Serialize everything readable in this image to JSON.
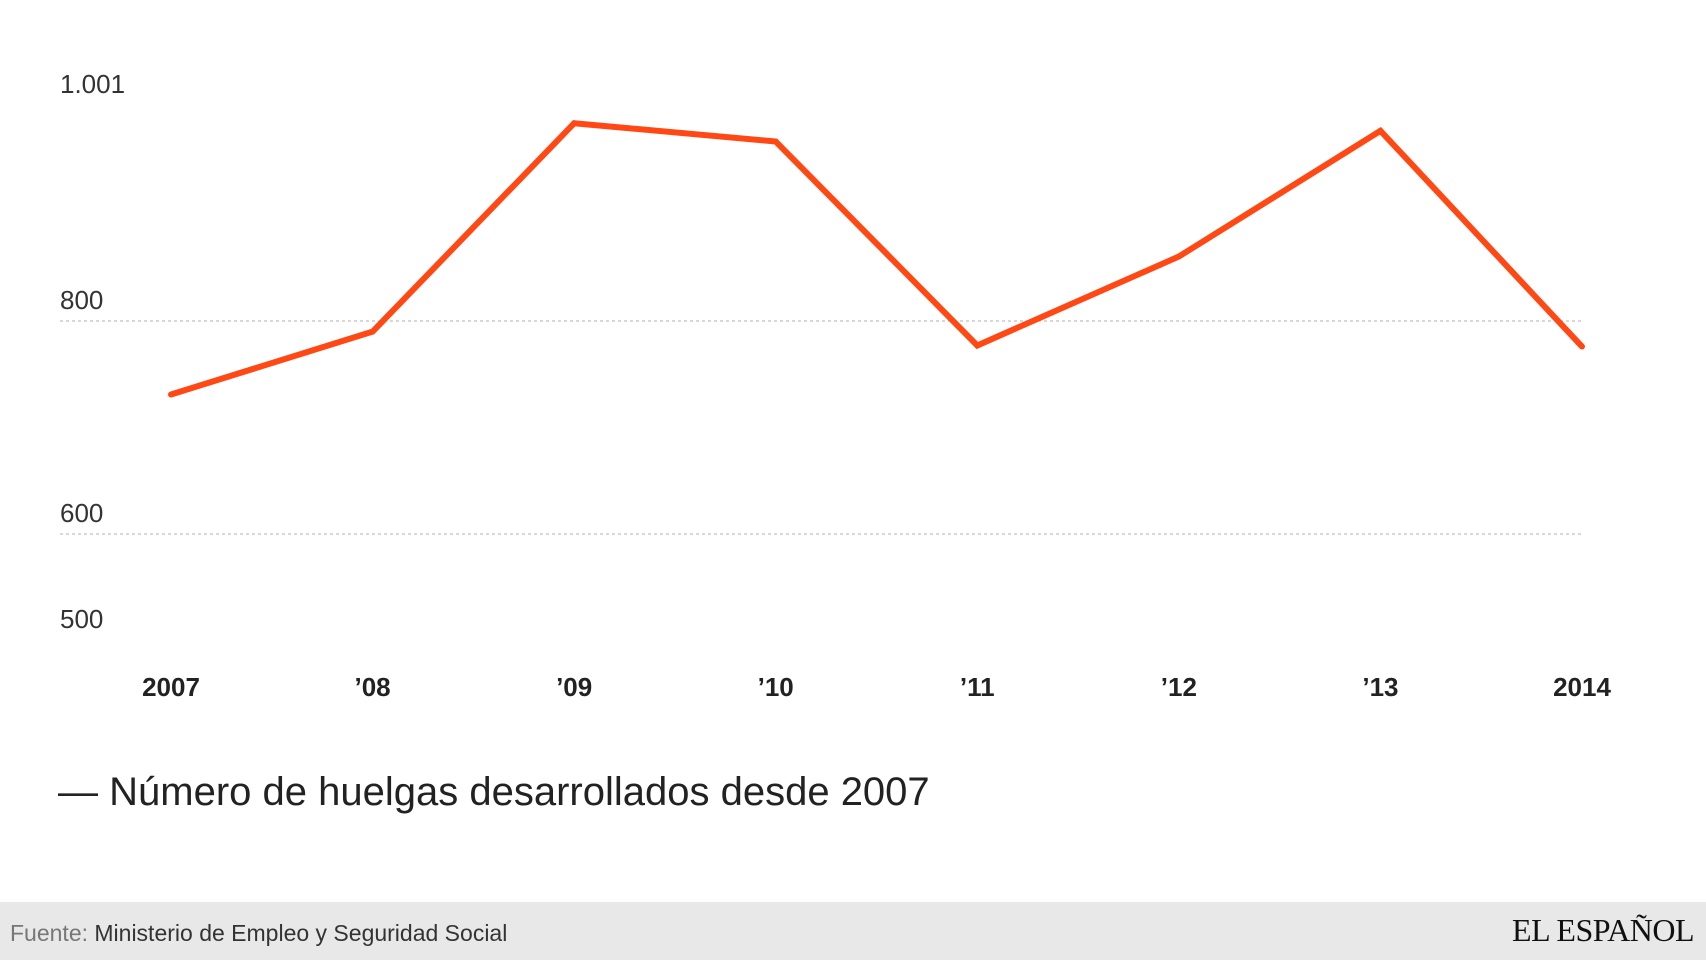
{
  "chart_data": {
    "type": "line",
    "categories": [
      "2007",
      "’08",
      "’09",
      "’10",
      "’11",
      "’12",
      "’13",
      "2014"
    ],
    "series": [
      {
        "name": "Número de huelgas desarrollados desde 2007",
        "values": [
          731,
          790,
          984,
          967,
          777,
          860,
          977,
          776
        ],
        "color": "#ff4814"
      }
    ],
    "yticks": [
      {
        "value": 1001,
        "label": "1.001"
      },
      {
        "value": 800,
        "label": "800"
      },
      {
        "value": 600,
        "label": "600"
      },
      {
        "value": 500,
        "label": "500"
      }
    ],
    "gridlines": [
      800,
      600
    ],
    "ylim": [
      500,
      1001
    ],
    "legend_position": "bottom-left"
  },
  "legend": {
    "symbol": "—",
    "label": "Número de huelgas desarrollados desde 2007"
  },
  "footer": {
    "source_label": "Fuente:",
    "source_text": "Ministerio de Empleo y Seguridad Social",
    "brand": "EL ESPAÑOL"
  }
}
